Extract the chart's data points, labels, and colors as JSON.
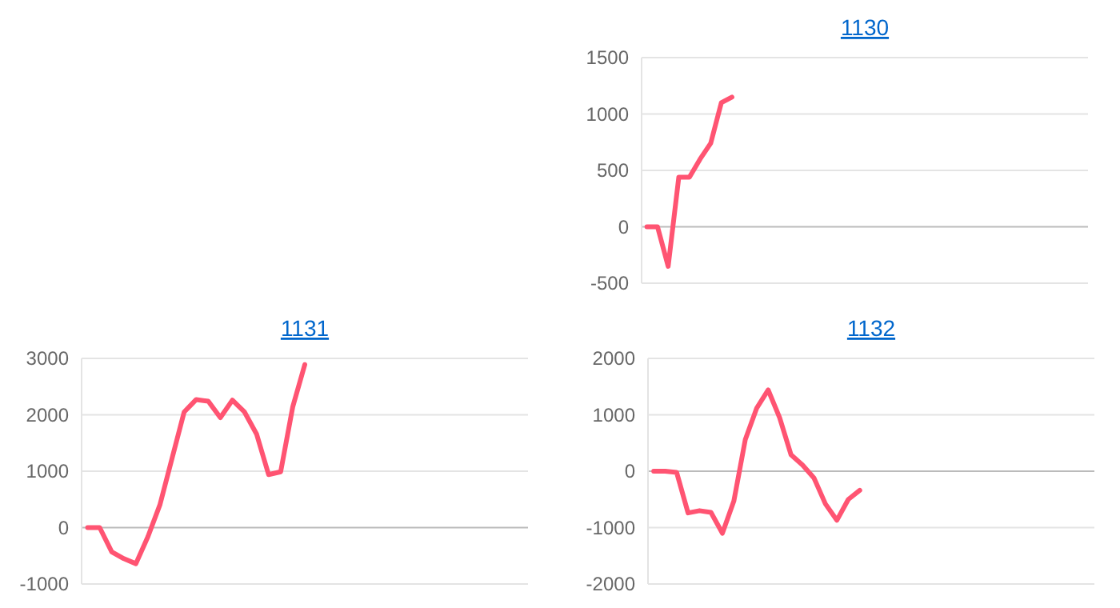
{
  "chart_data": [
    {
      "type": "line",
      "title": "1130",
      "tick_labels": "y",
      "grid": "y",
      "ylim": [
        -500,
        1500
      ],
      "yticks": [
        -500,
        0,
        500,
        1000,
        1500
      ],
      "categories": [
        null,
        null,
        null,
        null,
        null,
        null,
        null,
        null,
        null,
        null,
        null,
        null,
        null,
        null,
        null,
        null,
        null,
        null,
        null,
        null,
        null,
        null,
        null,
        null,
        null,
        null,
        null,
        null,
        null,
        null,
        null,
        null,
        null,
        null,
        null,
        null,
        null,
        null,
        null,
        null,
        null,
        null
      ],
      "series": [
        {
          "color": "#ff5472",
          "values": [
            0,
            0,
            -350,
            440,
            440,
            600,
            740,
            1100,
            1150,
            null,
            null,
            null,
            null,
            null,
            null,
            null,
            null,
            null,
            null,
            null,
            null,
            null,
            null,
            null,
            null,
            null,
            null,
            null,
            null,
            null,
            null,
            null,
            null,
            null,
            null,
            null,
            null,
            null,
            null,
            null,
            null,
            null
          ]
        }
      ]
    },
    {
      "type": "line",
      "title": "1131",
      "tick_labels": "y",
      "grid": "y",
      "ylim": [
        -1000,
        3000
      ],
      "yticks": [
        -1000,
        0,
        1000,
        2000,
        3000
      ],
      "categories": [
        null,
        null,
        null,
        null,
        null,
        null,
        null,
        null,
        null,
        null,
        null,
        null,
        null,
        null,
        null,
        null,
        null,
        null,
        null,
        null,
        null,
        null,
        null,
        null,
        null,
        null,
        null,
        null,
        null,
        null,
        null,
        null,
        null,
        null,
        null,
        null,
        null
      ],
      "series": [
        {
          "color": "#ff5472",
          "values": [
            0,
            0,
            -430,
            -550,
            -640,
            -160,
            410,
            1230,
            2050,
            2270,
            2240,
            1950,
            2260,
            2050,
            1660,
            940,
            990,
            2140,
            2890,
            null,
            null,
            null,
            null,
            null,
            null,
            null,
            null,
            null,
            null,
            null,
            null,
            null,
            null,
            null,
            null,
            null,
            null
          ]
        }
      ]
    },
    {
      "type": "line",
      "title": "1132",
      "tick_labels": "y",
      "grid": "y",
      "ylim": [
        -2000,
        2000
      ],
      "yticks": [
        -2000,
        -1000,
        0,
        1000,
        2000
      ],
      "categories": [
        null,
        null,
        null,
        null,
        null,
        null,
        null,
        null,
        null,
        null,
        null,
        null,
        null,
        null,
        null,
        null,
        null,
        null,
        null,
        null,
        null,
        null,
        null,
        null,
        null,
        null,
        null,
        null,
        null,
        null,
        null,
        null,
        null,
        null,
        null,
        null,
        null,
        null,
        null
      ],
      "series": [
        {
          "color": "#ff5472",
          "values": [
            0,
            0,
            -20,
            -740,
            -700,
            -730,
            -1100,
            -530,
            560,
            1120,
            1440,
            950,
            290,
            110,
            -120,
            -580,
            -870,
            -500,
            -340,
            null,
            null,
            null,
            null,
            null,
            null,
            null,
            null,
            null,
            null,
            null,
            null,
            null,
            null,
            null,
            null,
            null,
            null,
            null,
            null
          ]
        }
      ]
    }
  ]
}
